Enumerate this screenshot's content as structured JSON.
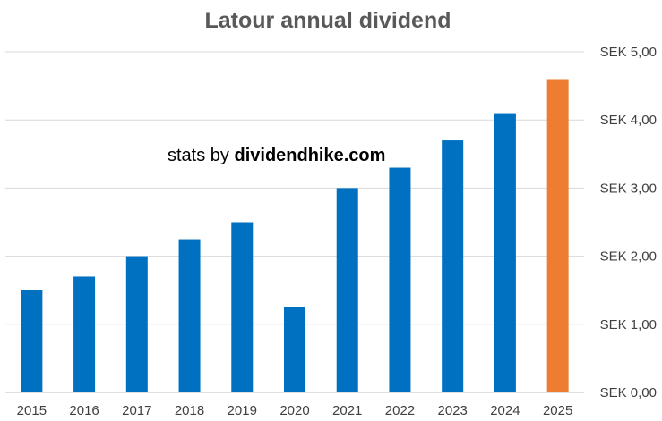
{
  "chart_data": {
    "type": "bar",
    "title": "Latour annual dividend",
    "watermark_prefix": "stats by ",
    "watermark_site": "dividendhike.com",
    "categories": [
      "2015",
      "2016",
      "2017",
      "2018",
      "2019",
      "2020",
      "2021",
      "2022",
      "2023",
      "2024",
      "2025"
    ],
    "values": [
      1.5,
      1.7,
      2.0,
      2.25,
      2.5,
      1.25,
      3.0,
      3.3,
      3.7,
      4.1,
      4.6
    ],
    "bar_colors": [
      "#0070C0",
      "#0070C0",
      "#0070C0",
      "#0070C0",
      "#0070C0",
      "#0070C0",
      "#0070C0",
      "#0070C0",
      "#0070C0",
      "#0070C0",
      "#ED7D31"
    ],
    "ylim": [
      0,
      5
    ],
    "y_ticks": [
      0,
      1,
      2,
      3,
      4,
      5
    ],
    "y_tick_labels": [
      "SEK 0,00",
      "SEK 1,00",
      "SEK 2,00",
      "SEK 3,00",
      "SEK 4,00",
      "SEK 5,00"
    ],
    "y_axis_side": "right",
    "grid": true,
    "legend": "none",
    "colors": {
      "bar": "#0070C0",
      "highlight": "#ED7D31",
      "grid": "#D9D9D9",
      "axis": "#BFBFBF"
    }
  }
}
